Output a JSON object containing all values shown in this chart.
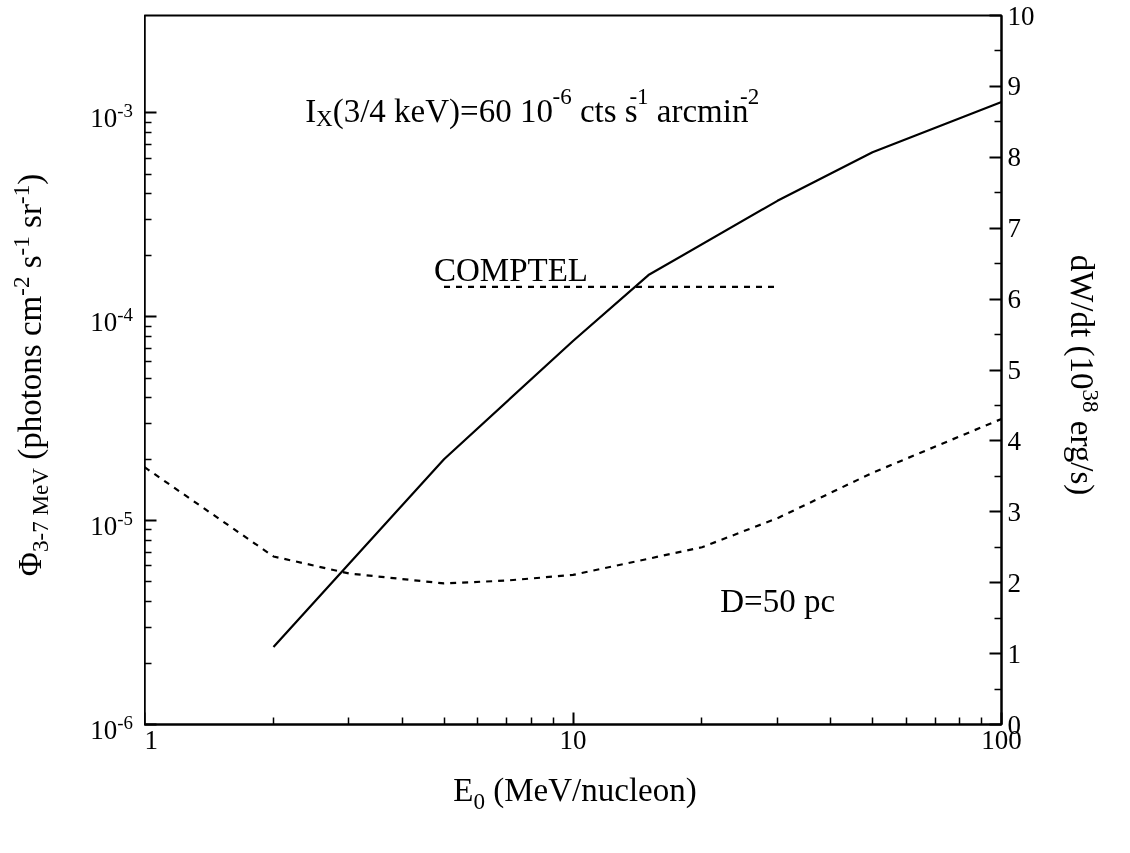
{
  "chart_data": {
    "type": "line",
    "xlabel": "E$_{0}$ (MeV/nucleon)",
    "ylabel": "Φ$_{3-7 MeV}$ (photons cm$^{-2}$ s$^{-1}$ sr$^{-1}$)",
    "y2label": "dW/dt (10$^{38}$ erg/s)",
    "annotations": [
      "I$_{X}$(3/4 keV)=60 10$^{-6}$ cts s$^{-1}$ arcmin$^{-2}$"
    ],
    "log": "xy",
    "xlim": [
      1,
      100
    ],
    "xticks": [
      1,
      10,
      100
    ],
    "ylim": [
      1e-06,
      0.003
    ],
    "yticks": [
      {
        "value": 1e-06,
        "label": "10$^{-6}$"
      },
      {
        "value": 1e-05,
        "label": "10$^{-5}$"
      },
      {
        "value": 0.0001,
        "label": "10$^{-4}$"
      },
      {
        "value": 0.001,
        "label": "10$^{-3}$"
      }
    ],
    "y2lim": [
      0,
      10
    ],
    "y2ticks": [
      0,
      1,
      2,
      3,
      4,
      5,
      6,
      7,
      8,
      9,
      10
    ],
    "grid": false,
    "marker": "none",
    "series": [
      {
        "color": "#000000",
        "line_style": "solid",
        "x": [
          2,
          5,
          10,
          15,
          30,
          50,
          100
        ],
        "values": [
          2.4e-06,
          2e-05,
          7.6e-05,
          0.00016,
          0.00037,
          0.00064,
          0.00113
        ]
      },
      {
        "name": "COMPTEL",
        "color": "#000000",
        "line_style": "dashed",
        "x": [
          5,
          30
        ],
        "values": [
          0.00014,
          0.00014
        ]
      },
      {
        "name": "D=50 pc",
        "color": "#000000",
        "line_style": "dashed",
        "axis": "y2",
        "x": [
          1,
          2,
          3,
          5,
          7,
          10,
          20,
          30,
          50,
          100
        ],
        "values": [
          3.63,
          2.37,
          2.13,
          1.99,
          2.03,
          2.11,
          2.5,
          2.91,
          3.55,
          4.31
        ]
      }
    ]
  }
}
